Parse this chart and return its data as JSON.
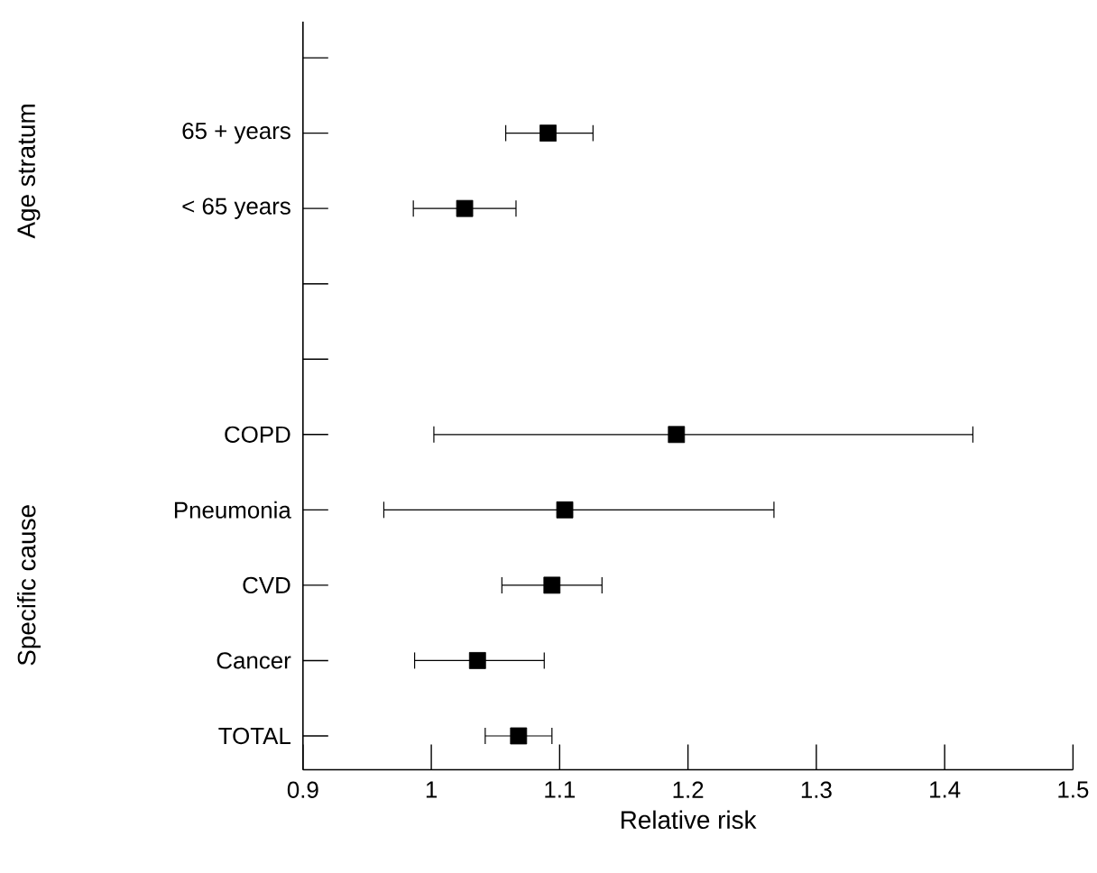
{
  "chart_data": {
    "type": "scatter",
    "orientation": "horizontal",
    "xlabel": "Relative risk",
    "annotations": [
      "Age stratum",
      "Specific cause"
    ],
    "categories": [
      null,
      "65 + years",
      "< 65 years",
      null,
      null,
      "COPD",
      "Pneumonia",
      "CVD",
      "Cancer",
      "TOTAL"
    ],
    "values": [
      null,
      1.091,
      1.026,
      null,
      null,
      1.191,
      1.104,
      1.094,
      1.036,
      1.068
    ],
    "errors": [
      null,
      [
        1.058,
        1.126
      ],
      [
        0.986,
        1.066
      ],
      null,
      null,
      [
        1.002,
        1.422
      ],
      [
        0.963,
        1.267
      ],
      [
        1.055,
        1.133
      ],
      [
        0.987,
        1.088
      ],
      [
        1.042,
        1.094
      ]
    ],
    "color": "#000000",
    "marker": "square",
    "xlim": [
      0.9,
      1.5
    ],
    "xticks": [
      0.9,
      1,
      1.1,
      1.2,
      1.3,
      1.4,
      1.5
    ]
  }
}
